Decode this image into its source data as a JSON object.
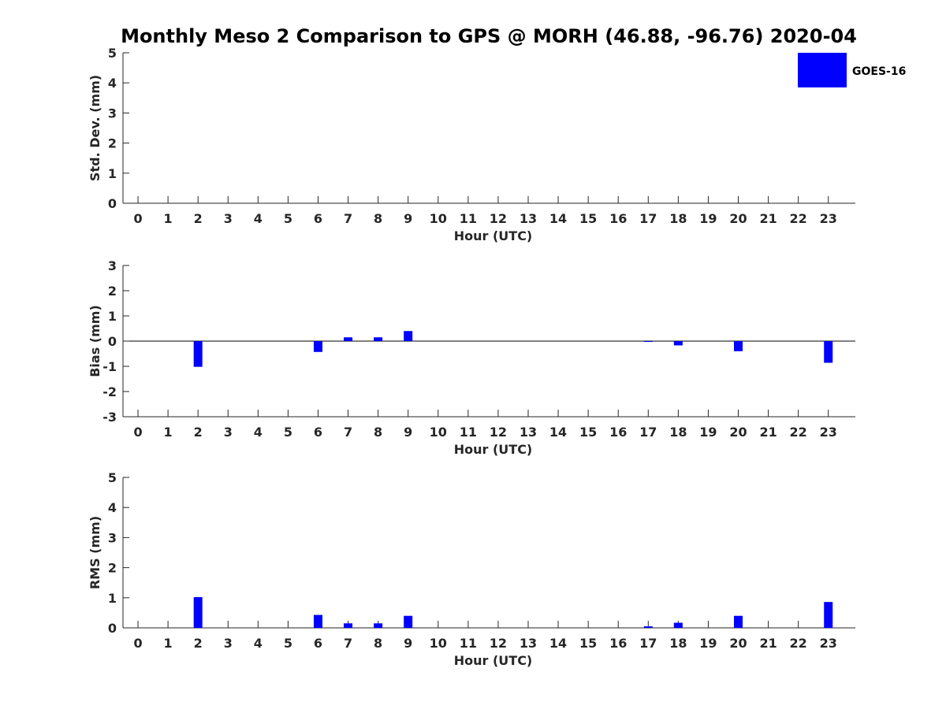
{
  "title": "Monthly Meso 2 Comparison to GPS @ MORH (46.88, -96.76) 2020-04",
  "legend": {
    "label": "GOES-16",
    "color": "#0000ff"
  },
  "chart_data": [
    {
      "type": "bar",
      "panel": "std-dev",
      "xlabel": "Hour (UTC)",
      "ylabel": "Std. Dev. (mm)",
      "categories": [
        0,
        1,
        2,
        3,
        4,
        5,
        6,
        7,
        8,
        9,
        10,
        11,
        12,
        13,
        14,
        15,
        16,
        17,
        18,
        19,
        20,
        21,
        22,
        23
      ],
      "xlim": [
        -0.5,
        23.9
      ],
      "ylim": [
        0,
        5
      ],
      "yticks": [
        0,
        1,
        2,
        3,
        4,
        5
      ],
      "zero_line": false,
      "series": [
        {
          "name": "GOES-16",
          "color": "#0000ff",
          "values": [
            null,
            null,
            null,
            null,
            null,
            null,
            null,
            null,
            null,
            null,
            null,
            null,
            null,
            null,
            null,
            null,
            null,
            null,
            null,
            null,
            null,
            null,
            null,
            null
          ]
        }
      ]
    },
    {
      "type": "bar",
      "panel": "bias",
      "xlabel": "Hour (UTC)",
      "ylabel": "Bias (mm)",
      "categories": [
        0,
        1,
        2,
        3,
        4,
        5,
        6,
        7,
        8,
        9,
        10,
        11,
        12,
        13,
        14,
        15,
        16,
        17,
        18,
        19,
        20,
        21,
        22,
        23
      ],
      "xlim": [
        -0.5,
        23.9
      ],
      "ylim": [
        -3,
        3
      ],
      "yticks": [
        -3,
        -2,
        -1,
        0,
        1,
        2,
        3
      ],
      "zero_line": true,
      "series": [
        {
          "name": "GOES-16",
          "color": "#0000ff",
          "values": [
            null,
            null,
            -1.02,
            null,
            null,
            null,
            -0.43,
            0.15,
            0.15,
            0.4,
            null,
            null,
            null,
            null,
            null,
            null,
            null,
            -0.02,
            -0.17,
            null,
            -0.4,
            null,
            null,
            -0.86
          ]
        }
      ]
    },
    {
      "type": "bar",
      "panel": "rms",
      "xlabel": "Hour (UTC)",
      "ylabel": "RMS (mm)",
      "categories": [
        0,
        1,
        2,
        3,
        4,
        5,
        6,
        7,
        8,
        9,
        10,
        11,
        12,
        13,
        14,
        15,
        16,
        17,
        18,
        19,
        20,
        21,
        22,
        23
      ],
      "xlim": [
        -0.5,
        23.9
      ],
      "ylim": [
        0,
        5
      ],
      "yticks": [
        0,
        1,
        2,
        3,
        4,
        5
      ],
      "zero_line": false,
      "series": [
        {
          "name": "GOES-16",
          "color": "#0000ff",
          "values": [
            null,
            null,
            1.02,
            null,
            null,
            null,
            0.43,
            0.15,
            0.15,
            0.4,
            null,
            null,
            null,
            null,
            null,
            null,
            null,
            0.05,
            0.17,
            null,
            0.4,
            null,
            null,
            0.86
          ]
        }
      ]
    }
  ]
}
